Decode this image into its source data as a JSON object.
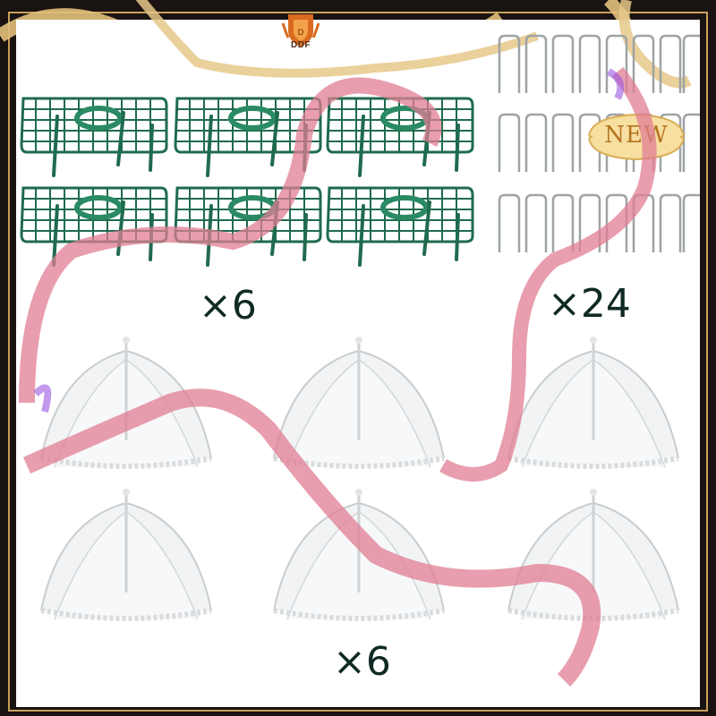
{
  "brand": {
    "logo_text": "DDF"
  },
  "badge": {
    "text": "NEW"
  },
  "quantities": {
    "grids": "×6",
    "pins": "×24",
    "covers": "×6"
  },
  "icons": {
    "logo": "shield-crest-icon",
    "grid": "plant-support-grid-icon",
    "pin": "u-shaped-garden-pin-icon",
    "cover": "mesh-food-cover-tent-icon"
  },
  "colors": {
    "grid_green": "#1f6b4e",
    "ribbon_pink": "#e07d93",
    "gold": "#d9b26a",
    "text_dark": "#0f2a24"
  }
}
